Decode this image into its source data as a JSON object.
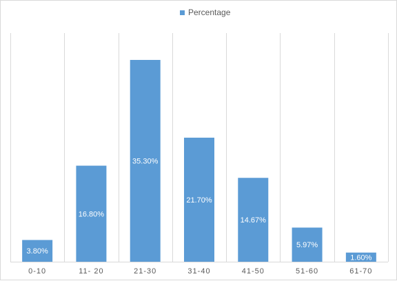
{
  "chart_data": {
    "type": "bar",
    "categories": [
      "0-10",
      "11- 20",
      "21-30",
      "31-40",
      "41-50",
      "51-60",
      "61-70"
    ],
    "series": [
      {
        "name": "Percentage",
        "values": [
          3.8,
          16.8,
          35.3,
          21.7,
          14.67,
          5.97,
          1.6
        ],
        "labels": [
          "3.80%",
          "16.80%",
          "35.30%",
          "21.70%",
          "14.67%",
          "5.97%",
          "1.60%"
        ]
      }
    ],
    "title": "",
    "xlabel": "",
    "ylabel": "",
    "ylim": [
      0,
      40
    ],
    "grid": "vertical category separators",
    "legend_position": "top-center",
    "colors": {
      "bar": "#5b9bd5",
      "gridline": "#d9d9d9",
      "axis_text": "#595959",
      "data_label": "#ffffff"
    }
  }
}
